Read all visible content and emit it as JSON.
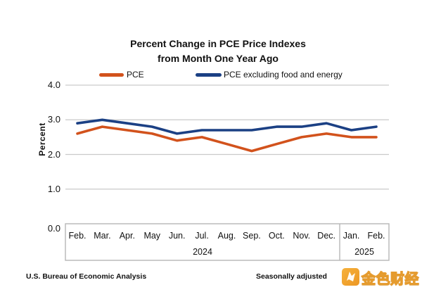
{
  "title": {
    "line1": "Percent Change in PCE Price Indexes",
    "line2": "from Month One Year Ago"
  },
  "legend": [
    {
      "label": "PCE",
      "color": "#d2521c"
    },
    {
      "label": "PCE excluding food and energy",
      "color": "#1b4084"
    }
  ],
  "y_axis": {
    "label": "Percent",
    "tick_labels": [
      "4.0",
      "3.0",
      "2.0",
      "1.0",
      "0.0"
    ]
  },
  "x_axis": {
    "months": [
      "Feb.",
      "Mar.",
      "Apr.",
      "May",
      "Jun.",
      "Jul.",
      "Aug.",
      "Sep.",
      "Oct.",
      "Nov.",
      "Dec.",
      "Jan.",
      "Feb."
    ],
    "year_groups": [
      {
        "label": "2024",
        "months_span": 11
      },
      {
        "label": "2025",
        "months_span": 2
      }
    ]
  },
  "footer": {
    "left": "U.S. Bureau of Economic Analysis",
    "right": "Seasonally adjusted"
  },
  "watermark": {
    "text": "金色财经",
    "icon": "golden-coin-icon",
    "gold_color": "#efa32f"
  },
  "colors": {
    "pce_line": "#d2521c",
    "core_line": "#1b4084",
    "gridline": "#c9c9c9",
    "axis_box_border": "#b7b7b7"
  },
  "chart_data": {
    "type": "line",
    "title": "Percent Change in PCE Price Indexes from Month One Year Ago",
    "x": [
      "Feb. 2024",
      "Mar. 2024",
      "Apr. 2024",
      "May 2024",
      "Jun. 2024",
      "Jul. 2024",
      "Aug. 2024",
      "Sep. 2024",
      "Oct. 2024",
      "Nov. 2024",
      "Dec. 2024",
      "Jan. 2025",
      "Feb. 2025"
    ],
    "series": [
      {
        "name": "PCE",
        "color": "#d2521c",
        "values": [
          2.6,
          2.8,
          2.7,
          2.6,
          2.4,
          2.5,
          2.3,
          2.1,
          2.3,
          2.5,
          2.6,
          2.5,
          2.5
        ]
      },
      {
        "name": "PCE excluding food and energy",
        "color": "#1b4084",
        "values": [
          2.9,
          3.0,
          2.9,
          2.8,
          2.6,
          2.7,
          2.7,
          2.7,
          2.8,
          2.8,
          2.9,
          2.7,
          2.8
        ]
      }
    ],
    "xlabel": "",
    "ylabel": "Percent",
    "ylim": [
      0.0,
      4.0
    ],
    "yticks": [
      0.0,
      1.0,
      2.0,
      3.0,
      4.0
    ],
    "grid": true,
    "legend_position": "top",
    "source_note": "U.S. Bureau of Economic Analysis",
    "adjustment_note": "Seasonally adjusted"
  }
}
